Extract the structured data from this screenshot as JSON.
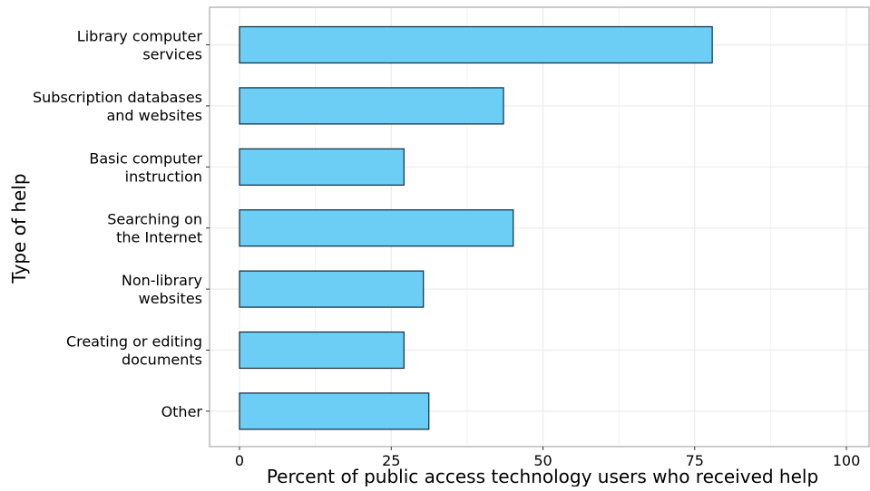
{
  "chart_data": {
    "type": "bar",
    "orientation": "horizontal",
    "categories": [
      [
        "Library computer",
        "services"
      ],
      [
        "Subscription databases",
        "and websites"
      ],
      [
        "Basic computer",
        "instruction"
      ],
      [
        "Searching on",
        "the Internet"
      ],
      [
        "Non-library",
        "websites"
      ],
      [
        "Creating or editing",
        "documents"
      ],
      [
        "Other"
      ]
    ],
    "values": [
      77.9,
      43.5,
      27.1,
      45.1,
      30.3,
      27.1,
      31.2
    ],
    "xlabel": "Percent of public access technology users who received help",
    "ylabel": "Type of help",
    "xlim": [
      0,
      100
    ],
    "xticks": [
      0,
      25,
      50,
      75,
      100
    ],
    "grid": true,
    "bar_color": "#6ccef5",
    "bar_edge_color": "#0f2a3f",
    "grid_color": "#ebebeb",
    "panel_border_color": "#9a9a9a"
  }
}
